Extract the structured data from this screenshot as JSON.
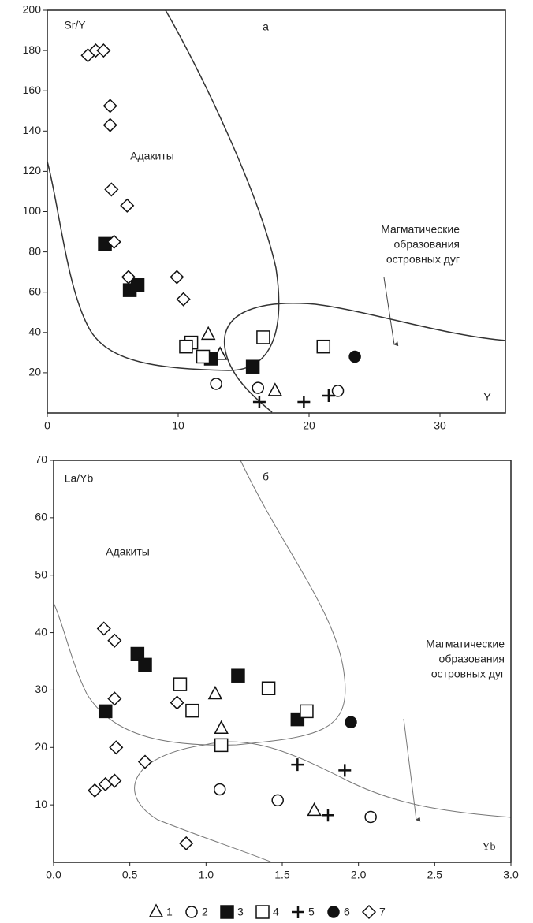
{
  "chart_data": [
    {
      "type": "scatter",
      "panel_label": "а",
      "y_label": "Sr/Y",
      "x_label": "Y",
      "region_label": "Адакиты",
      "arc_label": [
        "Магматические",
        "образования",
        "островных дуг"
      ],
      "xlim": [
        0,
        35
      ],
      "ylim": [
        0,
        200
      ],
      "xticks": [
        0,
        10,
        20,
        30
      ],
      "yticks": [
        20,
        40,
        60,
        80,
        100,
        120,
        140,
        160,
        180,
        200
      ],
      "series": [
        {
          "marker": "triangle",
          "filled": false,
          "x": [
            12.3,
            13.2,
            17.4
          ],
          "y": [
            39,
            29,
            11
          ]
        },
        {
          "marker": "circle",
          "filled": false,
          "x": [
            12.9,
            16.1,
            22.2
          ],
          "y": [
            14.5,
            12.5,
            11
          ]
        },
        {
          "marker": "square",
          "filled": true,
          "x": [
            4.4,
            6.3,
            6.9,
            12.5,
            15.7
          ],
          "y": [
            84,
            61,
            63.5,
            27,
            23
          ]
        },
        {
          "marker": "square",
          "filled": false,
          "x": [
            11,
            10.6,
            11.9,
            16.5,
            21.1
          ],
          "y": [
            35,
            33,
            28,
            37.6,
            33
          ]
        },
        {
          "marker": "cross",
          "filled": false,
          "x": [
            16.2,
            19.6,
            21.5
          ],
          "y": [
            5.5,
            5.5,
            8.6
          ]
        },
        {
          "marker": "circle",
          "filled": true,
          "x": [
            23.5
          ],
          "y": [
            28
          ]
        },
        {
          "marker": "diamond",
          "filled": false,
          "x": [
            3.1,
            3.7,
            4.3,
            4.8,
            4.8,
            4.9,
            6.1,
            5.1,
            6.2,
            9.9,
            10.4
          ],
          "y": [
            177.6,
            180,
            180,
            152.5,
            143,
            111,
            103,
            85,
            67.5,
            67.5,
            56.5
          ]
        }
      ]
    },
    {
      "type": "scatter",
      "panel_label": "б",
      "y_label": "La/Yb",
      "x_label": "Yb",
      "region_label": "Адакиты",
      "arc_label": [
        "Магматические",
        "образования",
        "островных дуг"
      ],
      "xlim": [
        0,
        3
      ],
      "ylim": [
        0,
        70
      ],
      "xticks": [
        {
          "value": 0,
          "label": "0.0"
        },
        0.5,
        {
          "value": 1,
          "label": "1.0"
        },
        1.5,
        {
          "value": 2,
          "label": "2.0"
        },
        2.5,
        {
          "value": 3,
          "label": "3.0"
        }
      ],
      "yticks": [
        10,
        20,
        30,
        40,
        50,
        60,
        70
      ],
      "series": [
        {
          "marker": "triangle",
          "filled": false,
          "x": [
            1.06,
            1.1,
            1.71
          ],
          "y": [
            29.3,
            23.3,
            9
          ]
        },
        {
          "marker": "circle",
          "filled": false,
          "x": [
            1.09,
            1.47,
            2.08
          ],
          "y": [
            12.7,
            10.8,
            7.9
          ]
        },
        {
          "marker": "square",
          "filled": true,
          "x": [
            0.34,
            0.55,
            0.6,
            1.21,
            1.6
          ],
          "y": [
            26.3,
            36.3,
            34.4,
            32.5,
            24.9
          ]
        },
        {
          "marker": "square",
          "filled": false,
          "x": [
            0.83,
            0.91,
            1.1,
            1.41,
            1.66
          ],
          "y": [
            31,
            26.4,
            20.4,
            30.3,
            26.3
          ]
        },
        {
          "marker": "cross",
          "filled": false,
          "x": [
            1.6,
            1.91,
            1.8
          ],
          "y": [
            17,
            16,
            8.2
          ]
        },
        {
          "marker": "circle",
          "filled": true,
          "x": [
            1.95
          ],
          "y": [
            24.4
          ]
        },
        {
          "marker": "diamond",
          "filled": false,
          "x": [
            0.33,
            0.4,
            0.4,
            0.81,
            0.41,
            0.6,
            0.27,
            0.34,
            0.4,
            0.87
          ],
          "y": [
            40.7,
            38.6,
            28.5,
            27.8,
            20,
            17.5,
            12.5,
            13.6,
            14.2,
            3.3
          ]
        }
      ]
    }
  ],
  "legend": [
    {
      "name": "1",
      "marker": "triangle",
      "filled": false
    },
    {
      "name": "2",
      "marker": "circle",
      "filled": false
    },
    {
      "name": "3",
      "marker": "square",
      "filled": true
    },
    {
      "name": "4",
      "marker": "square",
      "filled": false
    },
    {
      "name": "5",
      "marker": "cross",
      "filled": false
    },
    {
      "name": "6",
      "marker": "circle",
      "filled": true
    },
    {
      "name": "7",
      "marker": "diamond",
      "filled": false
    }
  ]
}
